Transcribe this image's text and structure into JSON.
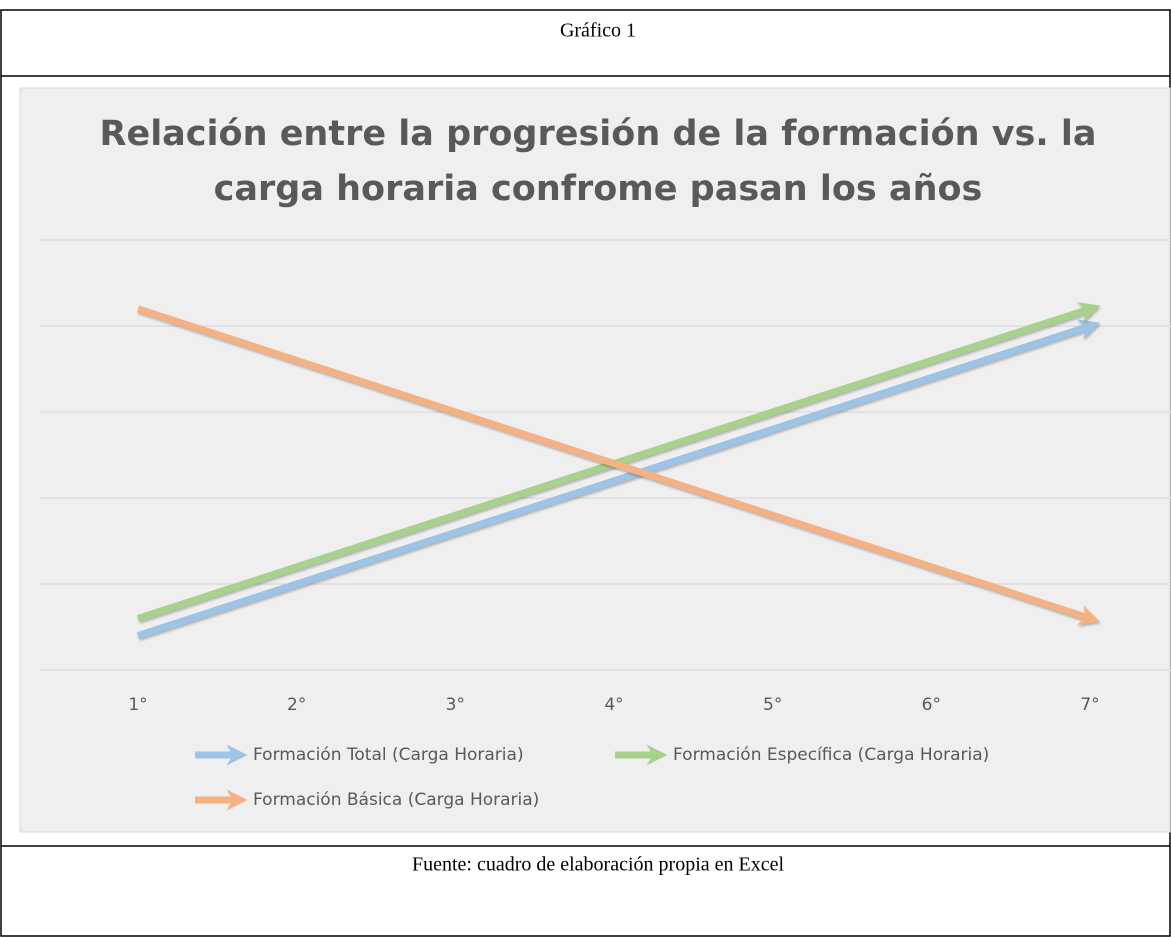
{
  "caption": "Gráfico 1",
  "source": "Fuente: cuadro de elaboración propia en Excel",
  "chart_data": {
    "type": "line",
    "title": [
      "Relación entre la progresión de la formación vs. la",
      "carga horaria confrome pasan los años"
    ],
    "categories": [
      "1°",
      "2°",
      "3°",
      "4°",
      "5°",
      "6°",
      "7°"
    ],
    "series": [
      {
        "name": "Formación Total (Carga Horaria)",
        "color": "#9dc3e6",
        "values": [
          0.4,
          1.0,
          1.6,
          2.2,
          2.8,
          3.4,
          4.0
        ]
      },
      {
        "name": "Formación Específica (Carga Horaria)",
        "color": "#a9d18e",
        "values": [
          0.6,
          1.2,
          1.8,
          2.4,
          3.0,
          3.6,
          4.2
        ]
      },
      {
        "name": "Formación Básica (Carga Horaria)",
        "color": "#f4b183",
        "values": [
          4.2,
          3.6,
          3.0,
          2.4,
          1.8,
          1.2,
          0.6
        ]
      }
    ],
    "ylim": [
      0,
      5
    ],
    "yticks": [
      0,
      1,
      2,
      3,
      4,
      5
    ],
    "grid": true,
    "legend": "bottom"
  }
}
